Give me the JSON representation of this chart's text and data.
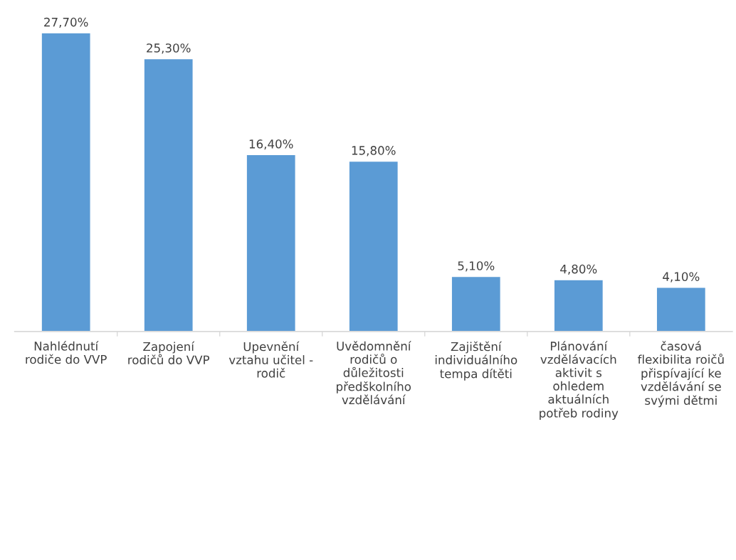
{
  "chart_data": {
    "type": "bar",
    "categories": [
      "Nahlédnutí\nrodiče do VVP",
      "Zapojení\nrodičů do VVP",
      "Upevnění\nvztahu učitel -\nrodič",
      "Uvědomnění\nrodičů o\ndůležitosti\npředškolního\nvzdělávání",
      "Zajištění\nindividuálního\ntempa dítěti",
      "Plánování\nvzdělávacích\naktivit s\nohledem\naktuálních\npotřeb rodiny",
      "časová\nflexibilita roičů\npřispívající ke\nvzdělávání se\nsvými dětmi"
    ],
    "values": [
      27.7,
      25.3,
      16.4,
      15.8,
      5.1,
      4.8,
      4.1
    ],
    "value_labels": [
      "27,70%",
      "25,30%",
      "16,40%",
      "15,80%",
      "5,10%",
      "4,80%",
      "4,10%"
    ],
    "color": "#5b9bd5",
    "grid": false,
    "legend": false
  }
}
